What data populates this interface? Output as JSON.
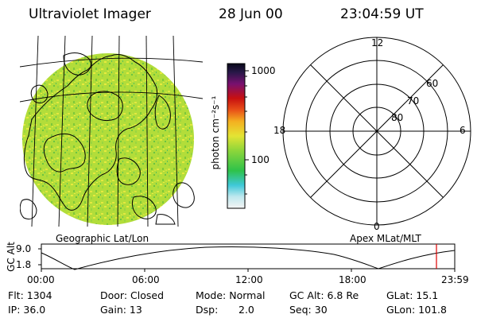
{
  "header": {
    "instrument": "Ultraviolet Imager",
    "date": "28 Jun 00",
    "time": "23:04:59 UT"
  },
  "map": {
    "label": "Geographic Lat/Lon"
  },
  "colorbar": {
    "unit_label": "photon cm⁻²s⁻¹",
    "ticks": [
      "1000",
      "100"
    ]
  },
  "polar": {
    "label": "Apex MLat/MLT",
    "mlt_labels": {
      "top": "12",
      "left": "18",
      "right": "6",
      "bottom": "0"
    },
    "lat_labels": [
      "60",
      "70",
      "80"
    ]
  },
  "orbit": {
    "ylabel": "GC Alt",
    "ticks": [
      "9.0",
      "1.8"
    ],
    "x_ticks": [
      "00:00",
      "06:00",
      "12:00",
      "18:00",
      "23:59"
    ],
    "marker_color": "#dd0000"
  },
  "info": {
    "flt": "Flt: 1304",
    "ip": "IP: 36.0",
    "door": "Door: Closed",
    "gain": "Gain: 13",
    "mode": "Mode: Normal",
    "dsp_label": "Dsp:",
    "dsp_value": "2.0",
    "gcalt": "GC Alt: 6.8 Re",
    "seq": "Seq: 30",
    "glat": "GLat: 15.1",
    "glon": "GLon: 101.8"
  }
}
